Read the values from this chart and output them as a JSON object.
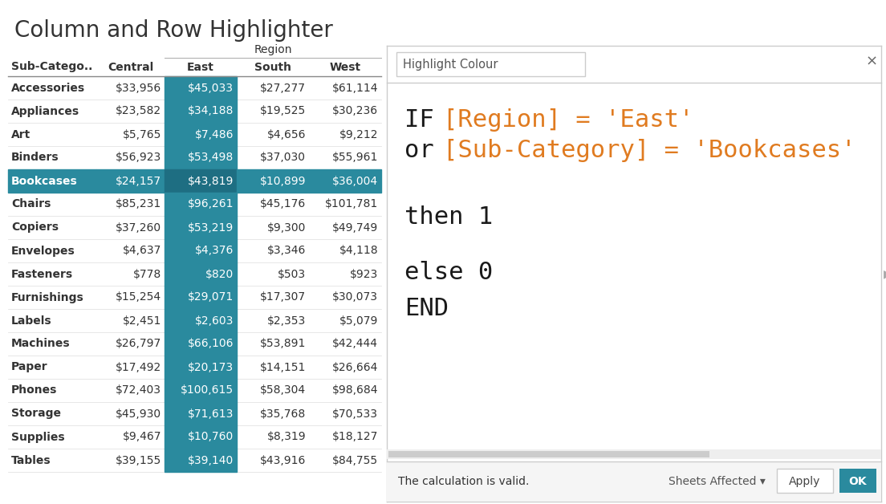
{
  "title": "Column and Row Highlighter",
  "table_headers": [
    "Sub-Catego..",
    "Central",
    "East",
    "South",
    "West"
  ],
  "region_label": "Region",
  "rows": [
    [
      "Accessories",
      "$33,956",
      "$45,033",
      "$27,277",
      "$61,114"
    ],
    [
      "Appliances",
      "$23,582",
      "$34,188",
      "$19,525",
      "$30,236"
    ],
    [
      "Art",
      "$5,765",
      "$7,486",
      "$4,656",
      "$9,212"
    ],
    [
      "Binders",
      "$56,923",
      "$53,498",
      "$37,030",
      "$55,961"
    ],
    [
      "Bookcases",
      "$24,157",
      "$43,819",
      "$10,899",
      "$36,004"
    ],
    [
      "Chairs",
      "$85,231",
      "$96,261",
      "$45,176",
      "$101,781"
    ],
    [
      "Copiers",
      "$37,260",
      "$53,219",
      "$9,300",
      "$49,749"
    ],
    [
      "Envelopes",
      "$4,637",
      "$4,376",
      "$3,346",
      "$4,118"
    ],
    [
      "Fasteners",
      "$778",
      "$820",
      "$503",
      "$923"
    ],
    [
      "Furnishings",
      "$15,254",
      "$29,071",
      "$17,307",
      "$30,073"
    ],
    [
      "Labels",
      "$2,451",
      "$2,603",
      "$2,353",
      "$5,079"
    ],
    [
      "Machines",
      "$26,797",
      "$66,106",
      "$53,891",
      "$42,444"
    ],
    [
      "Paper",
      "$17,492",
      "$20,173",
      "$14,151",
      "$26,664"
    ],
    [
      "Phones",
      "$72,403",
      "$100,615",
      "$58,304",
      "$98,684"
    ],
    [
      "Storage",
      "$45,930",
      "$71,613",
      "$35,768",
      "$70,533"
    ],
    [
      "Supplies",
      "$9,467",
      "$10,760",
      "$8,319",
      "$18,127"
    ],
    [
      "Tables",
      "$39,155",
      "$39,140",
      "$43,916",
      "$84,755"
    ]
  ],
  "teal_color": "#2a8a9e",
  "teal_dark": "#1e6e82",
  "white_text": "#ffffff",
  "dark_text": "#333333",
  "bg_color": "#ffffff",
  "dialog_border": "#cccccc",
  "title_color": "#333333",
  "code_black": "#1a1a1a",
  "code_orange": "#e07b20",
  "dialog_title": "Highlight Colour",
  "dialog_close": "×",
  "bottom_left": "The calculation is valid.",
  "bottom_mid": "Sheets Affected ▾",
  "bottom_right": "Apply",
  "bottom_ok": "OK"
}
